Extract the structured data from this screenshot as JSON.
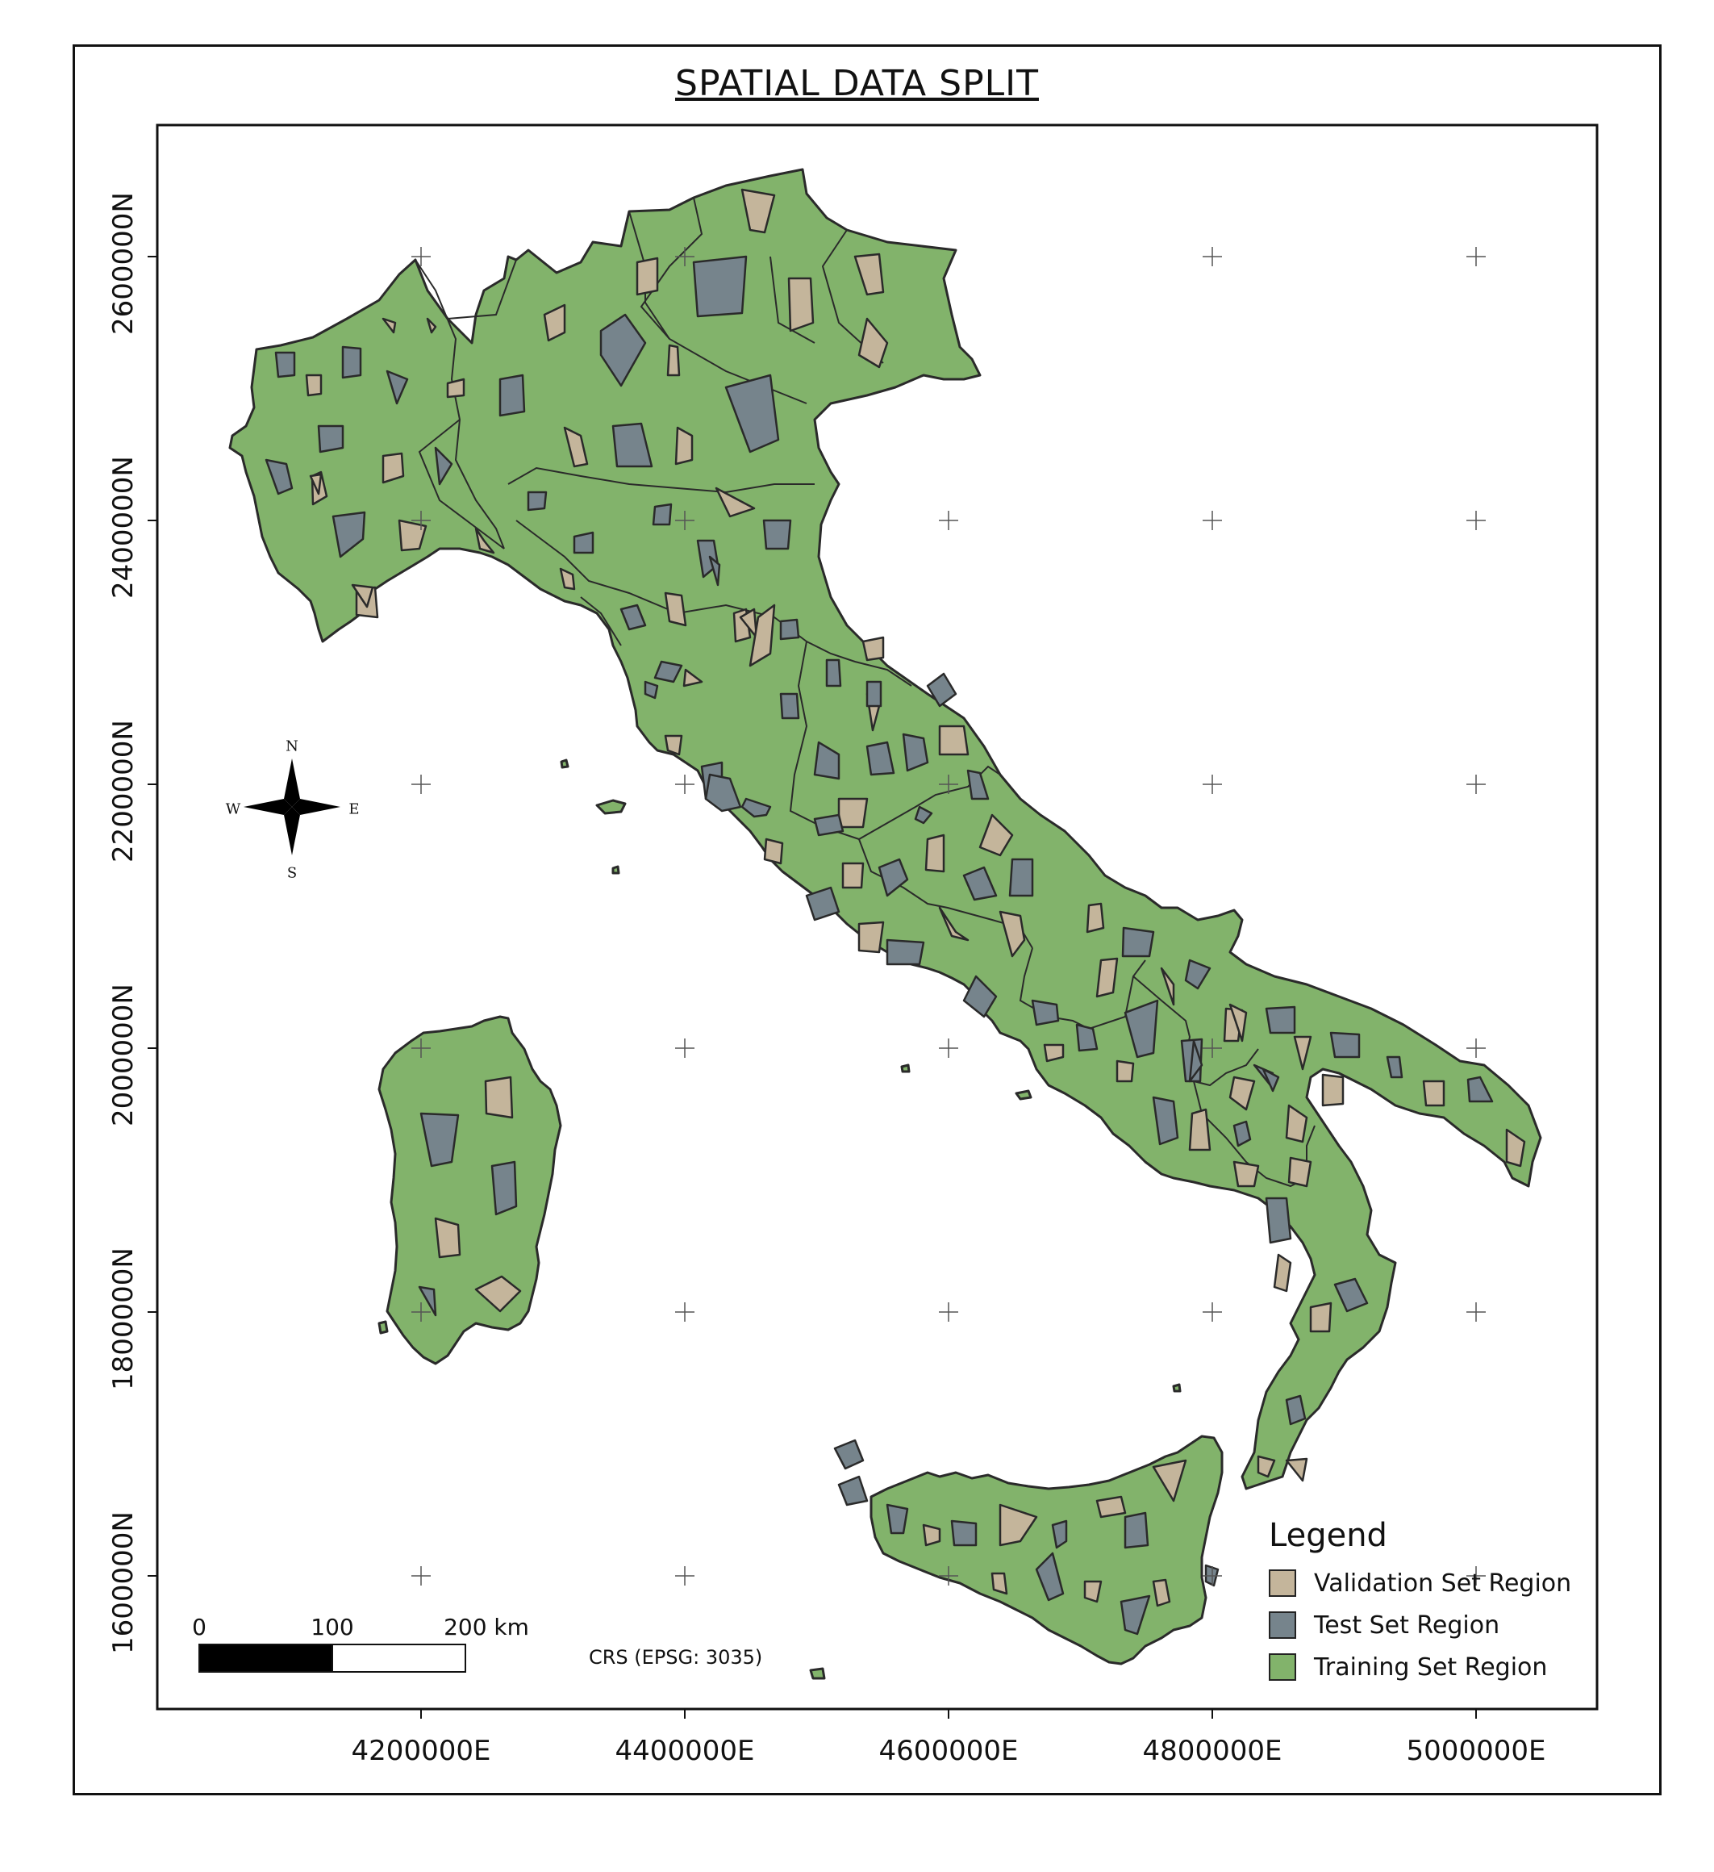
{
  "title": "SPATIAL DATA SPLIT",
  "y_axis_labels": [
    "2600000N",
    "2400000N",
    "2200000N",
    "2000000N",
    "1800000N",
    "1600000N"
  ],
  "x_axis_labels": [
    "4200000E",
    "4400000E",
    "4600000E",
    "4800000E",
    "5000000E"
  ],
  "compass": {
    "n": "N",
    "s": "S",
    "e": "E",
    "w": "W"
  },
  "scale_bar": {
    "labels": [
      "0",
      "100",
      "200 km"
    ]
  },
  "crs_note": "CRS (EPSG: 3035)",
  "legend": {
    "title": "Legend",
    "items": [
      {
        "label": "Validation Set Region",
        "color": "#c4b59b"
      },
      {
        "label": "Test Set Region",
        "color": "#76848c"
      },
      {
        "label": "Training Set Region",
        "color": "#82b36b"
      }
    ]
  },
  "colors": {
    "land": "#82b36b",
    "validation": "#c4b59b",
    "test": "#76848c",
    "outline": "#2a2a2a"
  }
}
